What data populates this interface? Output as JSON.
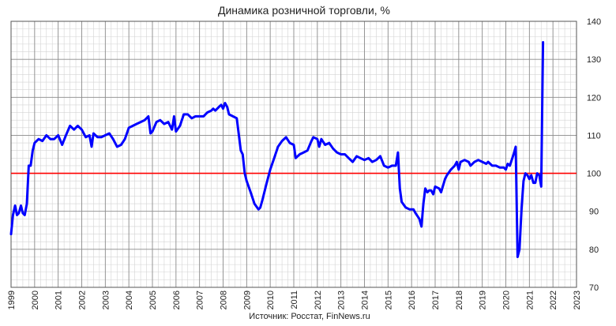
{
  "chart_data": {
    "type": "line",
    "title": "Динамика розничной торговли, %",
    "source": "Источник: Росстат, FinNews.ru",
    "xlabel": "",
    "ylabel": "",
    "xlim": [
      1999,
      2023
    ],
    "ylim": [
      70,
      140
    ],
    "x_ticks": [
      "1999",
      "2000",
      "2001",
      "2002",
      "2003",
      "2004",
      "2005",
      "2006",
      "2007",
      "2008",
      "2009",
      "2010",
      "2011",
      "2012",
      "2013",
      "2014",
      "2015",
      "2016",
      "2017",
      "2018",
      "2019",
      "2020",
      "2021",
      "2022",
      "2023"
    ],
    "y_ticks": [
      "70",
      "80",
      "90",
      "100",
      "110",
      "120",
      "130",
      "140"
    ],
    "grid": true,
    "legend": "none",
    "reference_line": {
      "y": 100,
      "color": "#ff0000"
    },
    "series": [
      {
        "color": "#0000ff",
        "points": [
          [
            1999.0,
            84
          ],
          [
            1999.08,
            89
          ],
          [
            1999.17,
            91.5
          ],
          [
            1999.25,
            89
          ],
          [
            1999.33,
            89.5
          ],
          [
            1999.42,
            91.5
          ],
          [
            1999.5,
            89.5
          ],
          [
            1999.58,
            89
          ],
          [
            1999.67,
            92
          ],
          [
            1999.75,
            102
          ],
          [
            1999.83,
            102
          ],
          [
            1999.92,
            106
          ],
          [
            2000.0,
            108
          ],
          [
            2000.17,
            109
          ],
          [
            2000.33,
            108.5
          ],
          [
            2000.5,
            110
          ],
          [
            2000.67,
            109
          ],
          [
            2000.83,
            109
          ],
          [
            2001.0,
            110
          ],
          [
            2001.17,
            107.5
          ],
          [
            2001.33,
            110
          ],
          [
            2001.5,
            112.5
          ],
          [
            2001.67,
            111.5
          ],
          [
            2001.83,
            112.5
          ],
          [
            2002.0,
            111.5
          ],
          [
            2002.17,
            109.5
          ],
          [
            2002.33,
            110
          ],
          [
            2002.42,
            107
          ],
          [
            2002.5,
            110.5
          ],
          [
            2002.67,
            109.5
          ],
          [
            2002.83,
            109.5
          ],
          [
            2003.0,
            110
          ],
          [
            2003.17,
            110.5
          ],
          [
            2003.33,
            109
          ],
          [
            2003.5,
            107
          ],
          [
            2003.67,
            107.5
          ],
          [
            2003.83,
            109
          ],
          [
            2004.0,
            112
          ],
          [
            2004.17,
            112.5
          ],
          [
            2004.33,
            113
          ],
          [
            2004.5,
            113.5
          ],
          [
            2004.67,
            114
          ],
          [
            2004.83,
            115
          ],
          [
            2004.92,
            110.5
          ],
          [
            2005.0,
            111
          ],
          [
            2005.17,
            113.5
          ],
          [
            2005.33,
            114
          ],
          [
            2005.5,
            113
          ],
          [
            2005.67,
            113.5
          ],
          [
            2005.83,
            111.5
          ],
          [
            2005.92,
            115
          ],
          [
            2006.0,
            111
          ],
          [
            2006.17,
            112.5
          ],
          [
            2006.33,
            115.5
          ],
          [
            2006.5,
            115.5
          ],
          [
            2006.67,
            114.5
          ],
          [
            2006.83,
            115
          ],
          [
            2007.0,
            115
          ],
          [
            2007.17,
            115
          ],
          [
            2007.33,
            116
          ],
          [
            2007.5,
            116.5
          ],
          [
            2007.58,
            117
          ],
          [
            2007.67,
            116.5
          ],
          [
            2007.83,
            117.5
          ],
          [
            2007.92,
            118
          ],
          [
            2008.0,
            117
          ],
          [
            2008.08,
            118.5
          ],
          [
            2008.17,
            117.5
          ],
          [
            2008.25,
            115.5
          ],
          [
            2008.42,
            115
          ],
          [
            2008.58,
            114.5
          ],
          [
            2008.67,
            110
          ],
          [
            2008.75,
            106
          ],
          [
            2008.83,
            105
          ],
          [
            2008.92,
            100
          ],
          [
            2009.0,
            98
          ],
          [
            2009.17,
            95
          ],
          [
            2009.33,
            92
          ],
          [
            2009.5,
            90.5
          ],
          [
            2009.58,
            91
          ],
          [
            2009.67,
            93
          ],
          [
            2009.83,
            97
          ],
          [
            2010.0,
            101
          ],
          [
            2010.17,
            104
          ],
          [
            2010.33,
            107
          ],
          [
            2010.5,
            108.5
          ],
          [
            2010.67,
            109.5
          ],
          [
            2010.83,
            108
          ],
          [
            2011.0,
            107.5
          ],
          [
            2011.08,
            104
          ],
          [
            2011.25,
            105
          ],
          [
            2011.42,
            105.5
          ],
          [
            2011.58,
            106
          ],
          [
            2011.75,
            108.5
          ],
          [
            2011.83,
            109.5
          ],
          [
            2012.0,
            109
          ],
          [
            2012.08,
            107
          ],
          [
            2012.17,
            109
          ],
          [
            2012.33,
            107.5
          ],
          [
            2012.5,
            108
          ],
          [
            2012.67,
            106.5
          ],
          [
            2012.83,
            105.5
          ],
          [
            2013.0,
            105
          ],
          [
            2013.17,
            105
          ],
          [
            2013.33,
            104
          ],
          [
            2013.5,
            103
          ],
          [
            2013.67,
            104.5
          ],
          [
            2013.83,
            104
          ],
          [
            2014.0,
            103.5
          ],
          [
            2014.17,
            104
          ],
          [
            2014.33,
            103
          ],
          [
            2014.5,
            103.5
          ],
          [
            2014.67,
            104.5
          ],
          [
            2014.83,
            102
          ],
          [
            2015.0,
            101.5
          ],
          [
            2015.17,
            102
          ],
          [
            2015.33,
            102
          ],
          [
            2015.42,
            105.5
          ],
          [
            2015.5,
            96
          ],
          [
            2015.58,
            92.5
          ],
          [
            2015.75,
            91
          ],
          [
            2015.92,
            90.5
          ],
          [
            2016.08,
            90.5
          ],
          [
            2016.17,
            89.5
          ],
          [
            2016.33,
            88
          ],
          [
            2016.42,
            86
          ],
          [
            2016.5,
            92
          ],
          [
            2016.58,
            96
          ],
          [
            2016.67,
            95
          ],
          [
            2016.75,
            95.5
          ],
          [
            2016.83,
            95.5
          ],
          [
            2016.92,
            94.5
          ],
          [
            2017.0,
            96.5
          ],
          [
            2017.17,
            96
          ],
          [
            2017.25,
            95
          ],
          [
            2017.42,
            98.5
          ],
          [
            2017.5,
            99.5
          ],
          [
            2017.67,
            101
          ],
          [
            2017.83,
            102
          ],
          [
            2017.92,
            103
          ],
          [
            2018.0,
            101
          ],
          [
            2018.08,
            103
          ],
          [
            2018.25,
            103.5
          ],
          [
            2018.42,
            103
          ],
          [
            2018.5,
            102
          ],
          [
            2018.67,
            103
          ],
          [
            2018.83,
            103.5
          ],
          [
            2019.0,
            103
          ],
          [
            2019.17,
            102.5
          ],
          [
            2019.25,
            103
          ],
          [
            2019.42,
            102
          ],
          [
            2019.58,
            102
          ],
          [
            2019.75,
            101.5
          ],
          [
            2019.92,
            101.5
          ],
          [
            2020.0,
            101
          ],
          [
            2020.08,
            102.5
          ],
          [
            2020.17,
            102
          ],
          [
            2020.33,
            105
          ],
          [
            2020.42,
            107
          ],
          [
            2020.5,
            78
          ],
          [
            2020.58,
            80
          ],
          [
            2020.67,
            91
          ],
          [
            2020.75,
            98
          ],
          [
            2020.83,
            100
          ],
          [
            2020.92,
            99.5
          ],
          [
            2021.0,
            98.5
          ],
          [
            2021.08,
            99.5
          ],
          [
            2021.17,
            97.5
          ],
          [
            2021.25,
            97.5
          ],
          [
            2021.33,
            100
          ],
          [
            2021.42,
            99.5
          ],
          [
            2021.5,
            96.5
          ],
          [
            2021.58,
            134.5
          ]
        ]
      }
    ]
  }
}
